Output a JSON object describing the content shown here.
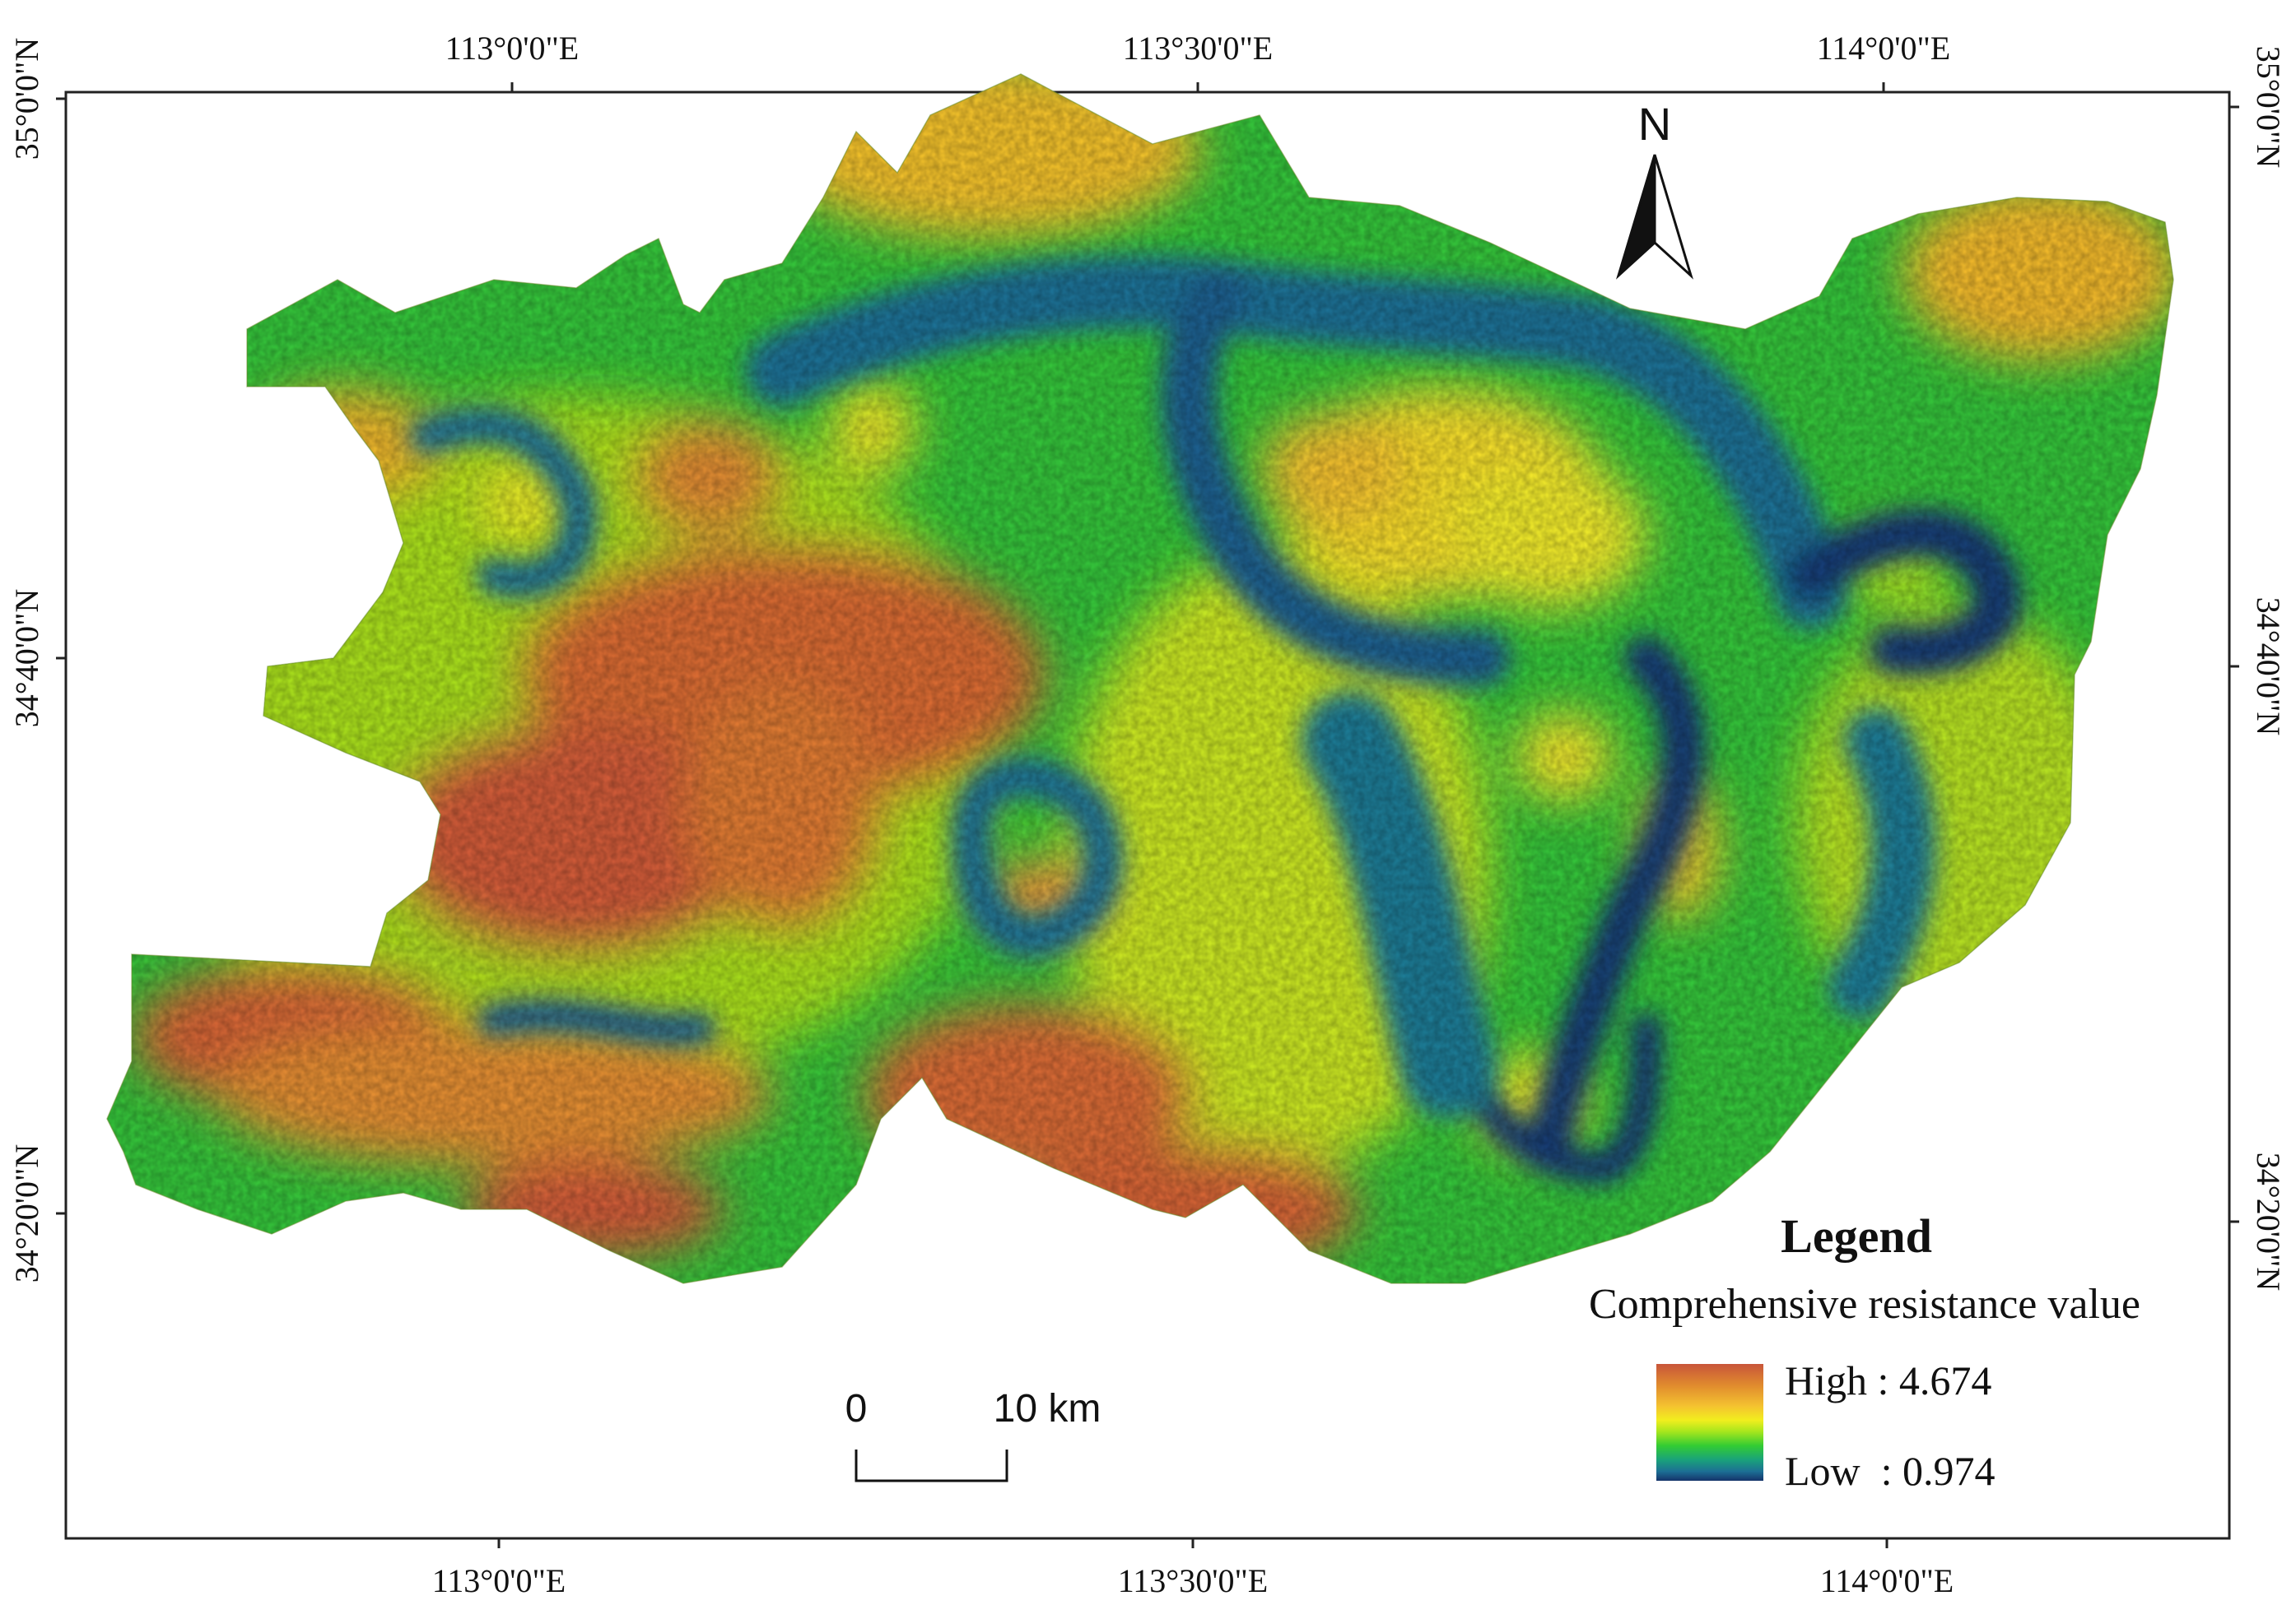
{
  "graticule": {
    "top_labels": [
      "113°0'0\"E",
      "113°30'0\"E",
      "114°0'0\"E"
    ],
    "bottom_labels": [
      "113°0'0\"E",
      "113°30'0\"E",
      "114°0'0\"E"
    ],
    "left_labels": [
      "35°0'0\"N",
      "34°40'0\"N",
      "34°20'0\"N"
    ],
    "right_labels": [
      "35°0'0\"N",
      "34°40'0\"N",
      "34°20'0\"N"
    ]
  },
  "north_arrow": {
    "label": "N"
  },
  "scale_bar": {
    "start_label": "0",
    "end_label": "10 km"
  },
  "legend": {
    "title": "Legend",
    "subtitle": "Comprehensive resistance value",
    "high_label": "High : 4.674",
    "low_label": "Low  : 0.974",
    "ramp_colors": [
      "#c8553a",
      "#e08a2e",
      "#f4c230",
      "#f2ee1e",
      "#a6e61d",
      "#33cc33",
      "#1aa27a",
      "#1c6f94",
      "#15336a"
    ]
  },
  "colors": {
    "high": "#c8553a",
    "orange": "#e58e35",
    "yellow": "#f2e02a",
    "light_green": "#9fdd20",
    "green": "#2fbf3a",
    "teal": "#1f9a83",
    "blue": "#1d6a98",
    "dark_blue": "#163b75"
  }
}
